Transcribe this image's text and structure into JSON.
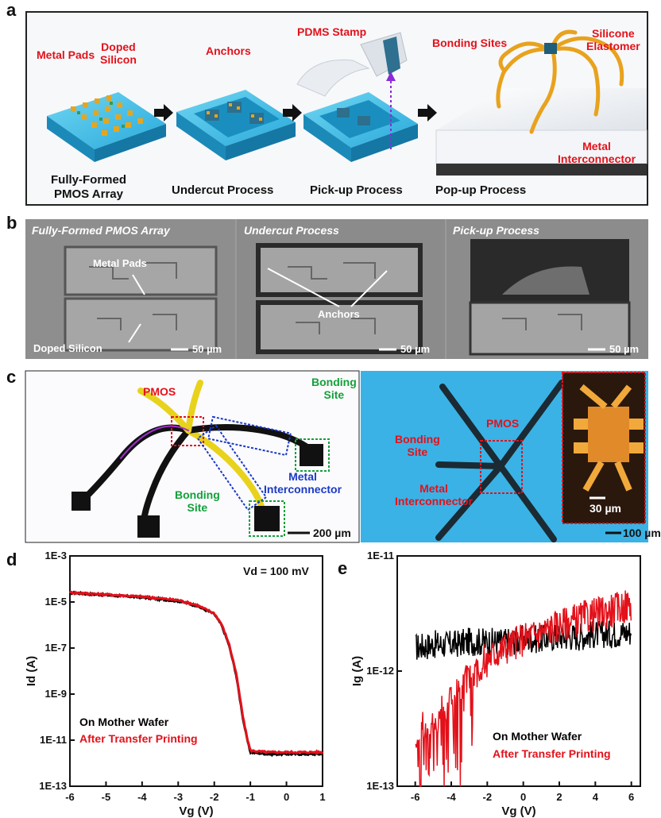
{
  "panels": {
    "a": "a",
    "b": "b",
    "c": "c",
    "d": "d",
    "e": "e"
  },
  "a": {
    "metal_pads": "Metal Pads",
    "doped_silicon": "Doped\nSilicon",
    "anchors": "Anchors",
    "pdms_stamp": "PDMS Stamp",
    "bonding_sites": "Bonding Sites",
    "silicone_elastomer": "Silicone\nElastomer",
    "metal_interconnector": "Metal\nInterconnector",
    "cap_fully": "Fully-Formed\nPMOS Array",
    "cap_undercut": "Undercut Process",
    "cap_pickup": "Pick-up Process",
    "cap_popup": "Pop-up Process"
  },
  "b": {
    "title1": "Fully-Formed PMOS Array",
    "title2": "Undercut Process",
    "title3": "Pick-up Process",
    "metal_pads": "Metal Pads",
    "doped_silicon": "Doped Silicon",
    "anchors": "Anchors",
    "scale1": "50 µm",
    "scale2": "50 µm",
    "scale3": "50 µm"
  },
  "c": {
    "pmos_left": "PMOS",
    "bonding_site_top": "Bonding\nSite",
    "metal_interconnector_left": "Metal\nInterconnector",
    "bonding_site_bottom": "Bonding\nSite",
    "scale_left": "200 µm",
    "bonding_site_right": "Bonding\nSite",
    "pmos_right": "PMOS",
    "metal_interconnector_right": "Metal\nInterconnector",
    "scale_inset": "30 µm",
    "scale_right": "100 µm"
  },
  "chart_data": [
    {
      "panel": "d",
      "type": "line",
      "xlabel": "Vg (V)",
      "ylabel": "Id (A)",
      "xlim": [
        -6,
        1
      ],
      "ylim": [
        1e-13,
        0.001
      ],
      "yscale": "log",
      "xticks": [
        "-6",
        "-5",
        "-4",
        "-3",
        "-2",
        "-1",
        "0",
        "1"
      ],
      "yticks": [
        "1E-13",
        "1E-11",
        "1E-9",
        "1E-7",
        "1E-5",
        "1E-3"
      ],
      "annotation": "Vd = 100 mV",
      "series": [
        {
          "name": "On Mother Wafer",
          "color": "#000000",
          "x": [
            -6,
            -5,
            -4,
            -3,
            -2.5,
            -2,
            -1.8,
            -1.6,
            -1.4,
            -1.3,
            -1.2,
            -1.1,
            -1.0,
            -0.5,
            0,
            0.5,
            1
          ],
          "y": [
            2.5e-05,
            2e-05,
            1.6e-05,
            1.1e-05,
            7e-06,
            3e-06,
            1e-06,
            1.5e-07,
            8e-09,
            8e-10,
            8e-11,
            1.3e-11,
            3e-12,
            2.5e-12,
            2.5e-12,
            2.5e-12,
            2.5e-12
          ]
        },
        {
          "name": "After Transfer Printing",
          "color": "#e3111a",
          "x": [
            -6,
            -5,
            -4,
            -3,
            -2.5,
            -2,
            -1.8,
            -1.6,
            -1.4,
            -1.3,
            -1.2,
            -1.1,
            -1.0,
            -0.5,
            0,
            0.5,
            1
          ],
          "y": [
            2.6e-05,
            2.1e-05,
            1.7e-05,
            1.2e-05,
            7.5e-06,
            3.2e-06,
            1.1e-06,
            1.7e-07,
            9e-09,
            9e-10,
            9e-11,
            1.5e-11,
            3.5e-12,
            3e-12,
            3e-12,
            3e-12,
            3e-12
          ]
        }
      ]
    },
    {
      "panel": "e",
      "type": "line",
      "xlabel": "Vg (V)",
      "ylabel": "Ig (A)",
      "xlim": [
        -7,
        6.5
      ],
      "ylim": [
        1e-13,
        1e-11
      ],
      "yscale": "log",
      "xticks": [
        "-6",
        "-4",
        "-2",
        "0",
        "2",
        "4",
        "6"
      ],
      "yticks": [
        "1E-13",
        "1E-12",
        "1E-11"
      ],
      "series": [
        {
          "name": "On Mother Wafer",
          "color": "#000000",
          "x": [
            -6,
            -5,
            -4,
            -3,
            -2,
            -1,
            0,
            1,
            2,
            3,
            4,
            5,
            6
          ],
          "y": [
            1.6e-12,
            1.7e-12,
            1.7e-12,
            1.8e-12,
            1.8e-12,
            1.8e-12,
            1.9e-12,
            1.9e-12,
            2e-12,
            2e-12,
            2.1e-12,
            2.1e-12,
            2.2e-12
          ]
        },
        {
          "name": "After Transfer Printing",
          "color": "#e3111a",
          "x": [
            -6,
            -5,
            -4,
            -3,
            -2,
            -1,
            0,
            1,
            2,
            3,
            4,
            5,
            6
          ],
          "y": [
            3e-13,
            3.5e-13,
            6e-13,
            9e-13,
            1.3e-12,
            1.6e-12,
            1.9e-12,
            2.2e-12,
            2.5e-12,
            2.8e-12,
            3.1e-12,
            3.4e-12,
            3.8e-12
          ]
        }
      ]
    }
  ]
}
